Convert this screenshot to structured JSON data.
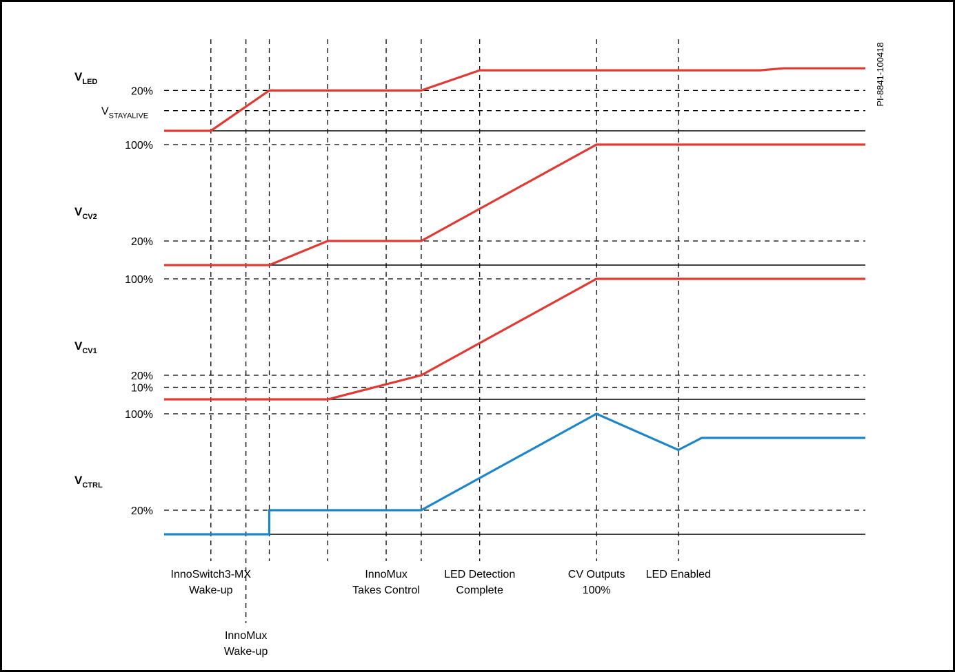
{
  "figure_id": "PI-8841-100418",
  "colors": {
    "red": "#e03a34",
    "blue": "#1e86c8",
    "frame": "#000000"
  },
  "signals": [
    {
      "key": "led",
      "main": "V",
      "sub": "LED",
      "color": "#e03a34",
      "levels": [
        {
          "label": "20%",
          "level": 20
        }
      ],
      "extra_level": {
        "main": "V",
        "sub": "STAYALIVE",
        "level": 10
      },
      "trace": [
        [
          0,
          0
        ],
        [
          20,
          0
        ],
        [
          45,
          20
        ],
        [
          110,
          20
        ],
        [
          135,
          30
        ],
        [
          220,
          30
        ],
        [
          255,
          30
        ],
        [
          265,
          31
        ],
        [
          300,
          31
        ]
      ]
    },
    {
      "key": "cv2",
      "main": "V",
      "sub": "CV2",
      "color": "#e03a34",
      "levels": [
        {
          "label": "100%",
          "level": 100
        },
        {
          "label": "20%",
          "level": 20
        }
      ],
      "trace": [
        [
          0,
          0
        ],
        [
          45,
          0
        ],
        [
          70,
          20
        ],
        [
          110,
          20
        ],
        [
          185,
          100
        ],
        [
          300,
          100
        ]
      ]
    },
    {
      "key": "cv1",
      "main": "V",
      "sub": "CV1",
      "color": "#e03a34",
      "levels": [
        {
          "label": "100%",
          "level": 100
        },
        {
          "label": "20%",
          "level": 20
        },
        {
          "label": "10%",
          "level": 10
        }
      ],
      "trace": [
        [
          0,
          0
        ],
        [
          70,
          0
        ],
        [
          110,
          20
        ],
        [
          185,
          100
        ],
        [
          300,
          100
        ]
      ]
    },
    {
      "key": "ctrl",
      "main": "V",
      "sub": "CTRL",
      "color": "#1e86c8",
      "levels": [
        {
          "label": "100%",
          "level": 100
        },
        {
          "label": "20%",
          "level": 20
        }
      ],
      "trace": [
        [
          0,
          0
        ],
        [
          45,
          0
        ],
        [
          45,
          20
        ],
        [
          110,
          20
        ],
        [
          185,
          100
        ],
        [
          220,
          70
        ],
        [
          230,
          80
        ],
        [
          300,
          80
        ]
      ]
    }
  ],
  "events": [
    {
      "t": 20,
      "lines": [
        "InnoSwitch3-MX",
        "Wake-up"
      ],
      "row": 1
    },
    {
      "t": 35,
      "lines": [
        "InnoMux",
        "Wake-up"
      ],
      "row": 2
    },
    {
      "t": 45,
      "lines": []
    },
    {
      "t": 70,
      "lines": []
    },
    {
      "t": 95,
      "lines": [
        "InnoMux",
        "Takes Control"
      ],
      "row": 1
    },
    {
      "t": 110,
      "lines": []
    },
    {
      "t": 135,
      "lines": [
        "LED Detection",
        "Complete"
      ],
      "row": 1
    },
    {
      "t": 185,
      "lines": [
        "CV Outputs",
        "100%"
      ],
      "row": 1
    },
    {
      "t": 220,
      "lines": [
        "LED Enabled"
      ],
      "row": 1
    }
  ]
}
